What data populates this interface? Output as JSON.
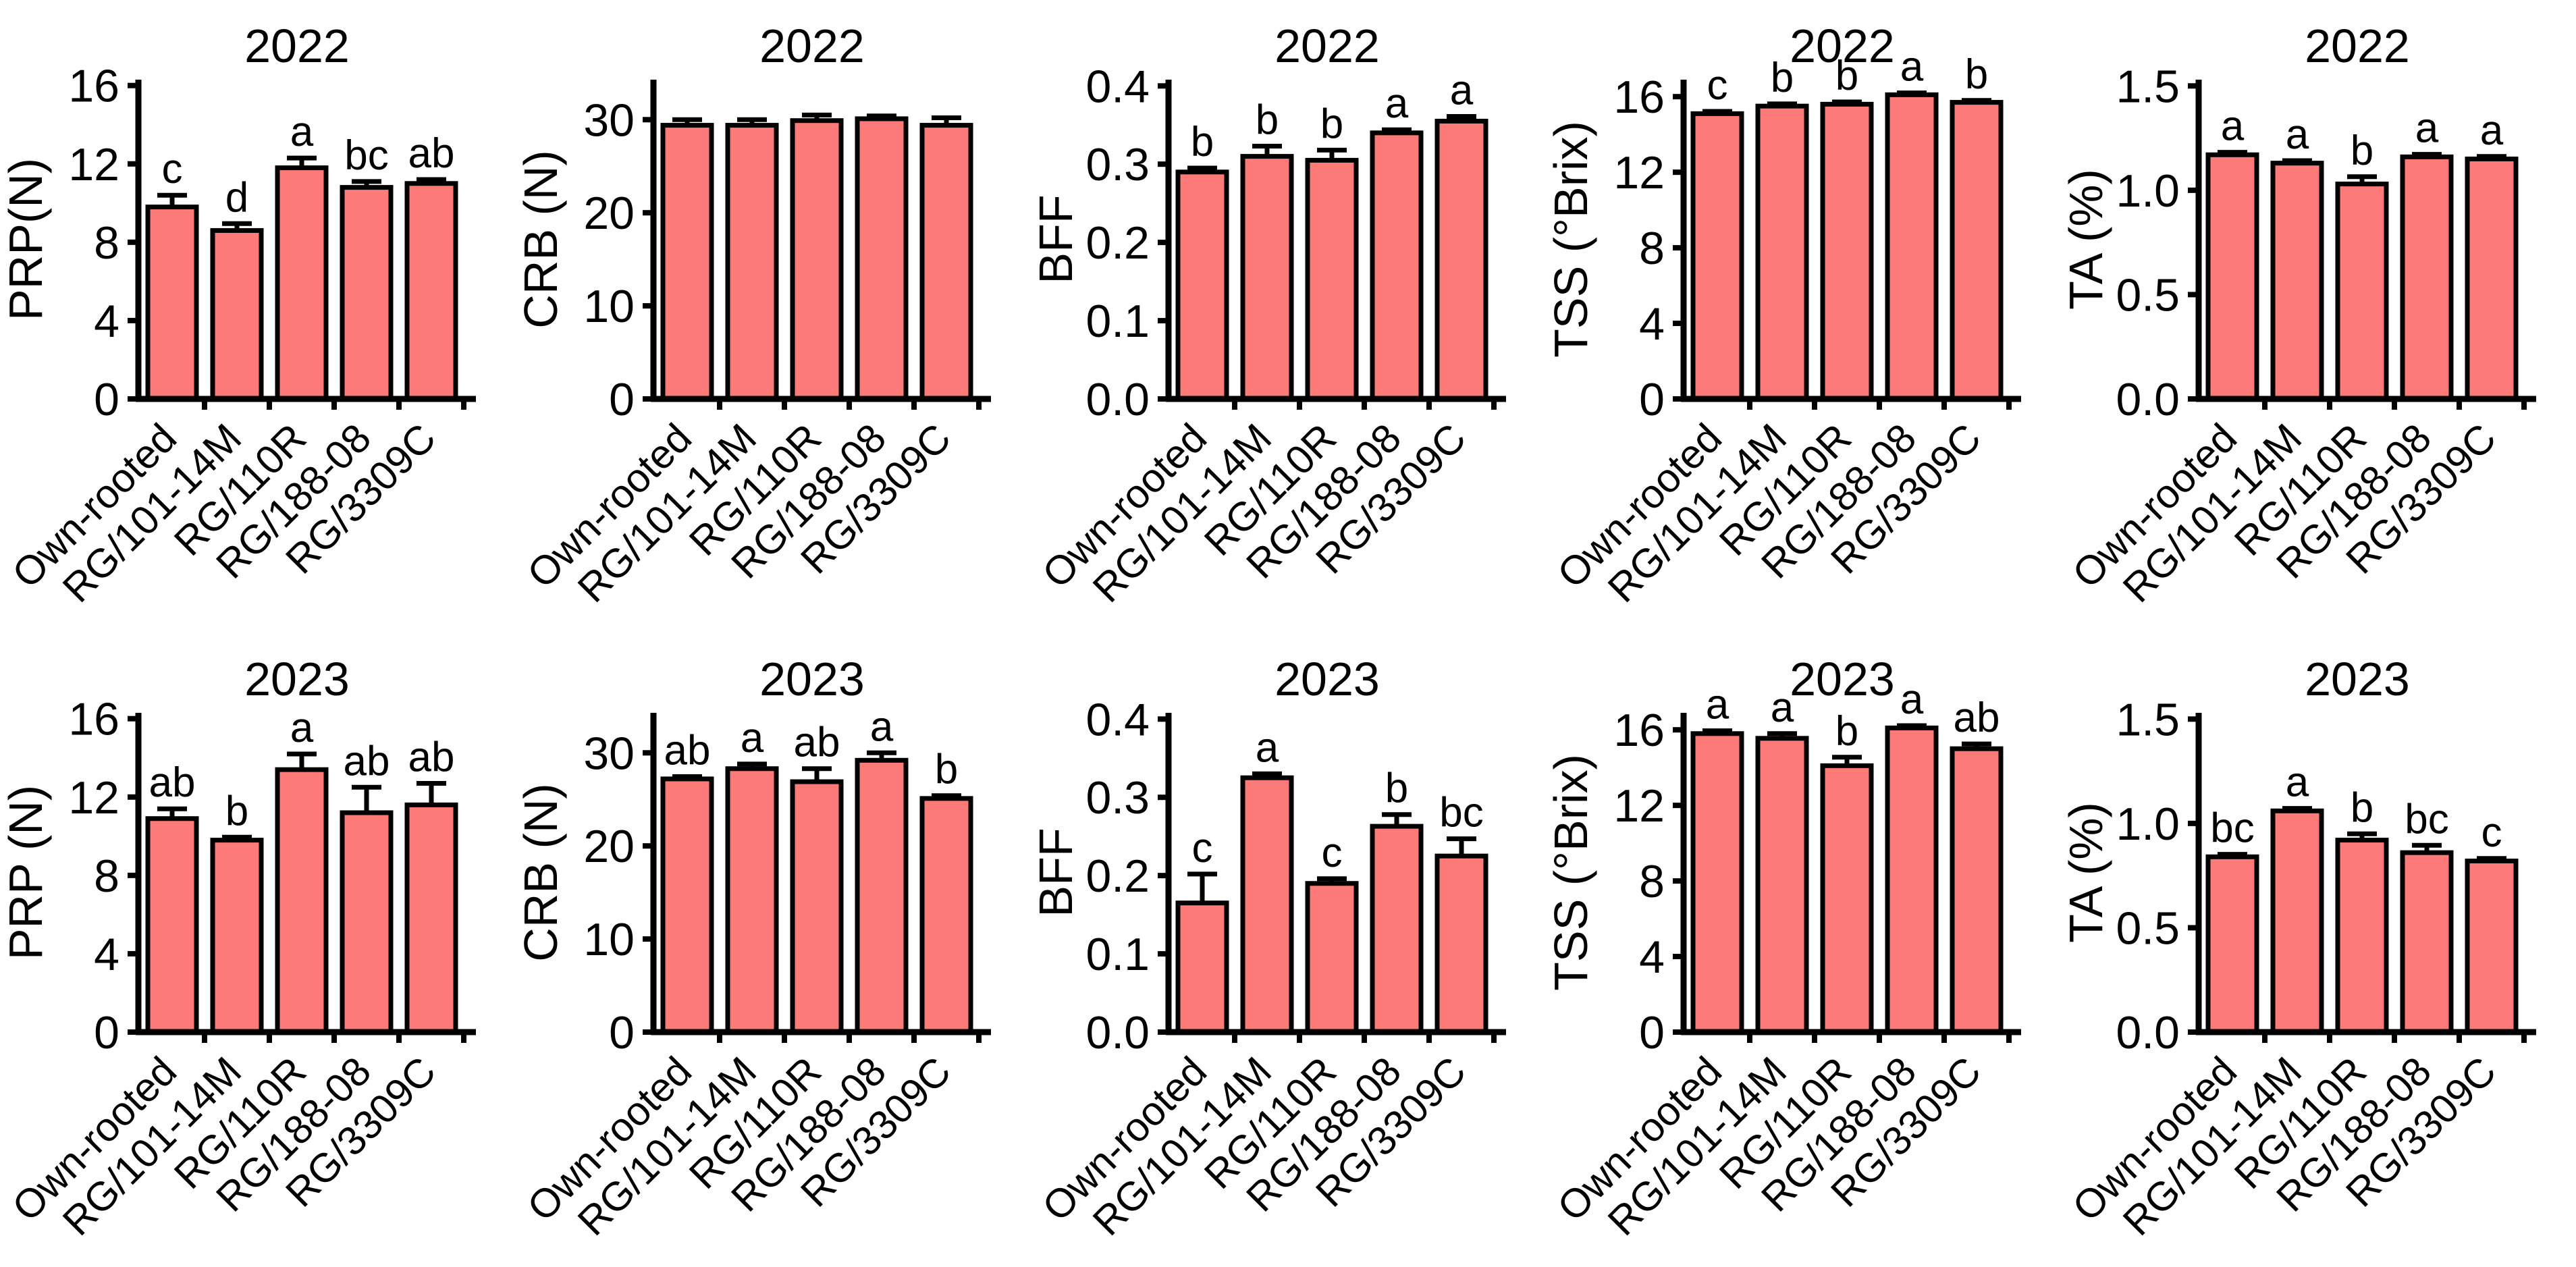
{
  "figure": {
    "background": "#ffffff",
    "bar_fill": "#FC7A77",
    "bar_stroke": "#000000",
    "axis_color": "#000000",
    "categories": [
      "Own-rooted",
      "RG/101-14M",
      "RG/110R",
      "RG/188-08",
      "RG/3309C"
    ],
    "row_titles": [
      "2022",
      "2023"
    ]
  },
  "chart_data": [
    {
      "type": "bar",
      "title": "2022",
      "ylabel": "PRP(N)",
      "categories": [
        "Own-rooted",
        "RG/101-14M",
        "RG/110R",
        "RG/188-08",
        "RG/3309C"
      ],
      "values": [
        9.8,
        8.6,
        11.8,
        10.8,
        11.0
      ],
      "errors": [
        0.6,
        0.35,
        0.5,
        0.3,
        0.2
      ],
      "letters": [
        "c",
        "d",
        "a",
        "bc",
        "ab"
      ],
      "yticks": [
        0,
        4,
        8,
        12,
        16
      ],
      "ytick_labels": [
        "0",
        "4",
        "8",
        "12",
        "16"
      ],
      "ylim": [
        0,
        16.3
      ],
      "grid": false,
      "legend": "none"
    },
    {
      "type": "bar",
      "title": "2022",
      "ylabel": "CRB (N)",
      "categories": [
        "Own-rooted",
        "RG/101-14M",
        "RG/110R",
        "RG/188-08",
        "RG/3309C"
      ],
      "values": [
        29.4,
        29.4,
        29.9,
        30.1,
        29.4
      ],
      "errors": [
        0.6,
        0.6,
        0.6,
        0.3,
        0.8
      ],
      "letters": [
        "",
        "",
        "",
        "",
        ""
      ],
      "yticks": [
        0,
        10,
        20,
        30
      ],
      "ytick_labels": [
        "0",
        "10",
        "20",
        "30"
      ],
      "ylim": [
        0,
        34.3
      ],
      "grid": false,
      "legend": "none"
    },
    {
      "type": "bar",
      "title": "2022",
      "ylabel": "BFF",
      "categories": [
        "Own-rooted",
        "RG/101-14M",
        "RG/110R",
        "RG/188-08",
        "RG/3309C"
      ],
      "values": [
        0.29,
        0.31,
        0.305,
        0.34,
        0.355
      ],
      "errors": [
        0.005,
        0.013,
        0.013,
        0.004,
        0.006
      ],
      "letters": [
        "b",
        "b",
        "b",
        "a",
        "a"
      ],
      "yticks": [
        0,
        0.1,
        0.2,
        0.3,
        0.4
      ],
      "ytick_labels": [
        "0.0",
        "0.1",
        "0.2",
        "0.3",
        "0.4"
      ],
      "ylim": [
        0,
        0.408
      ],
      "grid": false,
      "legend": "none"
    },
    {
      "type": "bar",
      "title": "2022",
      "ylabel": "TSS (°Brix)",
      "categories": [
        "Own-rooted",
        "RG/101-14M",
        "RG/110R",
        "RG/188-08",
        "RG/3309C"
      ],
      "values": [
        15.1,
        15.5,
        15.6,
        16.1,
        15.7
      ],
      "errors": [
        0.12,
        0.12,
        0.12,
        0.1,
        0.1
      ],
      "letters": [
        "c",
        "b",
        "b",
        "a",
        "b"
      ],
      "yticks": [
        0,
        4,
        8,
        12,
        16
      ],
      "ytick_labels": [
        "0",
        "4",
        "8",
        "12",
        "16"
      ],
      "ylim": [
        0,
        16.9
      ],
      "grid": false,
      "legend": "none"
    },
    {
      "type": "bar",
      "title": "2022",
      "ylabel": "TA (%)",
      "categories": [
        "Own-rooted",
        "RG/101-14M",
        "RG/110R",
        "RG/188-08",
        "RG/3309C"
      ],
      "values": [
        1.17,
        1.13,
        1.03,
        1.16,
        1.15
      ],
      "errors": [
        0.012,
        0.012,
        0.035,
        0.012,
        0.012
      ],
      "letters": [
        "a",
        "a",
        "b",
        "a",
        "a"
      ],
      "yticks": [
        0,
        0.5,
        1.0,
        1.5
      ],
      "ytick_labels": [
        "0.0",
        "0.5",
        "1.0",
        "1.5"
      ],
      "ylim": [
        0,
        1.53
      ],
      "grid": false,
      "legend": "none"
    },
    {
      "type": "bar",
      "title": "2023",
      "ylabel": "PRP (N)",
      "categories": [
        "Own-rooted",
        "RG/101-14M",
        "RG/110R",
        "RG/188-08",
        "RG/3309C"
      ],
      "values": [
        10.9,
        9.8,
        13.4,
        11.2,
        11.6
      ],
      "errors": [
        0.5,
        0.15,
        0.8,
        1.3,
        1.1
      ],
      "letters": [
        "ab",
        "b",
        "a",
        "ab",
        "ab"
      ],
      "yticks": [
        0,
        4,
        8,
        12,
        16
      ],
      "ytick_labels": [
        "0",
        "4",
        "8",
        "12",
        "16"
      ],
      "ylim": [
        0,
        16.3
      ],
      "grid": false,
      "legend": "none"
    },
    {
      "type": "bar",
      "title": "2023",
      "ylabel": "CRB (N)",
      "categories": [
        "Own-rooted",
        "RG/101-14M",
        "RG/110R",
        "RG/188-08",
        "RG/3309C"
      ],
      "values": [
        27.2,
        28.3,
        26.9,
        29.2,
        25.1
      ],
      "errors": [
        0.25,
        0.5,
        1.4,
        0.8,
        0.3
      ],
      "letters": [
        "ab",
        "a",
        "ab",
        "a",
        "b"
      ],
      "yticks": [
        0,
        10,
        20,
        30
      ],
      "ytick_labels": [
        "0",
        "10",
        "20",
        "30"
      ],
      "ylim": [
        0,
        34.3
      ],
      "grid": false,
      "legend": "none"
    },
    {
      "type": "bar",
      "title": "2023",
      "ylabel": "BFF",
      "categories": [
        "Own-rooted",
        "RG/101-14M",
        "RG/110R",
        "RG/188-08",
        "RG/3309C"
      ],
      "values": [
        0.165,
        0.325,
        0.19,
        0.263,
        0.225
      ],
      "errors": [
        0.037,
        0.005,
        0.006,
        0.015,
        0.022
      ],
      "letters": [
        "c",
        "a",
        "c",
        "b",
        "bc"
      ],
      "yticks": [
        0,
        0.1,
        0.2,
        0.3,
        0.4
      ],
      "ytick_labels": [
        "0.0",
        "0.1",
        "0.2",
        "0.3",
        "0.4"
      ],
      "ylim": [
        0,
        0.408
      ],
      "grid": false,
      "legend": "none"
    },
    {
      "type": "bar",
      "title": "2023",
      "ylabel": "TSS (°Brix)",
      "categories": [
        "Own-rooted",
        "RG/101-14M",
        "RG/110R",
        "RG/188-08",
        "RG/3309C"
      ],
      "values": [
        15.8,
        15.55,
        14.1,
        16.1,
        15.0
      ],
      "errors": [
        0.15,
        0.25,
        0.45,
        0.12,
        0.25
      ],
      "letters": [
        "a",
        "a",
        "b",
        "a",
        "ab"
      ],
      "yticks": [
        0,
        4,
        8,
        12,
        16
      ],
      "ytick_labels": [
        "0",
        "4",
        "8",
        "12",
        "16"
      ],
      "ylim": [
        0,
        16.9
      ],
      "grid": false,
      "legend": "none"
    },
    {
      "type": "bar",
      "title": "2023",
      "ylabel": "TA (%)",
      "categories": [
        "Own-rooted",
        "RG/101-14M",
        "RG/110R",
        "RG/188-08",
        "RG/3309C"
      ],
      "values": [
        0.84,
        1.06,
        0.92,
        0.86,
        0.82
      ],
      "errors": [
        0.012,
        0.012,
        0.03,
        0.035,
        0.012
      ],
      "letters": [
        "bc",
        "a",
        "b",
        "bc",
        "c"
      ],
      "yticks": [
        0,
        0.5,
        1.0,
        1.5
      ],
      "ytick_labels": [
        "0.0",
        "0.5",
        "1.0",
        "1.5"
      ],
      "ylim": [
        0,
        1.53
      ],
      "grid": false,
      "legend": "none"
    }
  ]
}
